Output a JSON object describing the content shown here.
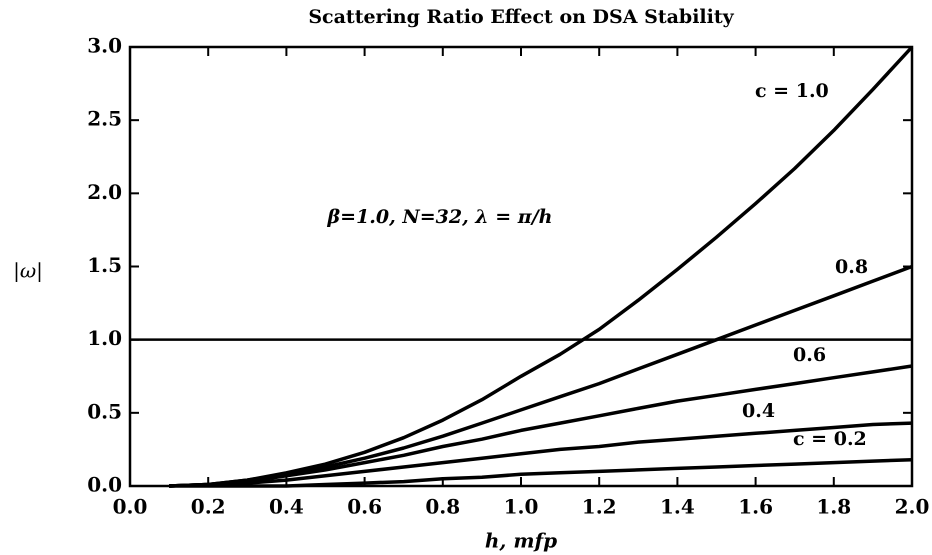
{
  "chart_data": {
    "type": "line",
    "title": "Scattering Ratio Effect on DSA Stability",
    "x_label": "h, mfp",
    "y_label": "|ω|",
    "annotation": "β=1.0, N=32, λ = π/h",
    "x": [
      0.1,
      0.2,
      0.3,
      0.4,
      0.5,
      0.6,
      0.7,
      0.8,
      0.9,
      1.0,
      1.1,
      1.2,
      1.3,
      1.4,
      1.5,
      1.6,
      1.7,
      1.8,
      1.9,
      2.0
    ],
    "series": [
      {
        "name": "c = 1.0",
        "color": "#000000",
        "values": [
          0,
          0.01,
          0.04,
          0.09,
          0.15,
          0.23,
          0.33,
          0.45,
          0.59,
          0.75,
          0.9,
          1.07,
          1.27,
          1.48,
          1.7,
          1.93,
          2.17,
          2.43,
          2.71,
          3.0
        ]
      },
      {
        "name": "0.8",
        "color": "#000000",
        "values": [
          0,
          0.01,
          0.04,
          0.08,
          0.13,
          0.19,
          0.26,
          0.34,
          0.43,
          0.52,
          0.61,
          0.7,
          0.8,
          0.9,
          1.0,
          1.1,
          1.2,
          1.3,
          1.4,
          1.5
        ]
      },
      {
        "name": "0.6",
        "color": "#000000",
        "values": [
          0,
          0.01,
          0.03,
          0.07,
          0.11,
          0.16,
          0.21,
          0.27,
          0.32,
          0.38,
          0.43,
          0.48,
          0.53,
          0.58,
          0.62,
          0.66,
          0.7,
          0.74,
          0.78,
          0.82
        ]
      },
      {
        "name": "0.4",
        "color": "#000000",
        "values": [
          0,
          0.01,
          0.02,
          0.04,
          0.07,
          0.1,
          0.13,
          0.16,
          0.19,
          0.22,
          0.25,
          0.27,
          0.3,
          0.32,
          0.34,
          0.36,
          0.38,
          0.4,
          0.42,
          0.43
        ]
      },
      {
        "name": "c = 0.2",
        "color": "#000000",
        "values": [
          0,
          0,
          0,
          0,
          0.01,
          0.02,
          0.03,
          0.05,
          0.06,
          0.08,
          0.09,
          0.1,
          0.11,
          0.12,
          0.13,
          0.14,
          0.15,
          0.16,
          0.17,
          0.18
        ]
      }
    ],
    "reference_line": 1.0,
    "xlim": [
      0,
      2
    ],
    "ylim": [
      0,
      3
    ],
    "xticks": [
      {
        "value": 0,
        "label": "0.0"
      },
      {
        "value": 0.2,
        "label": "0.2"
      },
      {
        "value": 0.4,
        "label": "0.4"
      },
      {
        "value": 0.6,
        "label": "0.6"
      },
      {
        "value": 0.8,
        "label": "0.8"
      },
      {
        "value": 1,
        "label": "1.0"
      },
      {
        "value": 1.2,
        "label": "1.2"
      },
      {
        "value": 1.4,
        "label": "1.4"
      },
      {
        "value": 1.6,
        "label": "1.6"
      },
      {
        "value": 1.8,
        "label": "1.8"
      },
      {
        "value": 2,
        "label": "2.0"
      }
    ],
    "yticks": [
      {
        "value": 0,
        "label": "0.0"
      },
      {
        "value": 0.5,
        "label": "0.5"
      },
      {
        "value": 1,
        "label": "1.0"
      },
      {
        "value": 1.5,
        "label": "1.5"
      },
      {
        "value": 2,
        "label": "2.0"
      },
      {
        "value": 2.5,
        "label": "2.5"
      },
      {
        "value": 3,
        "label": "3.0"
      }
    ],
    "grid": false
  }
}
